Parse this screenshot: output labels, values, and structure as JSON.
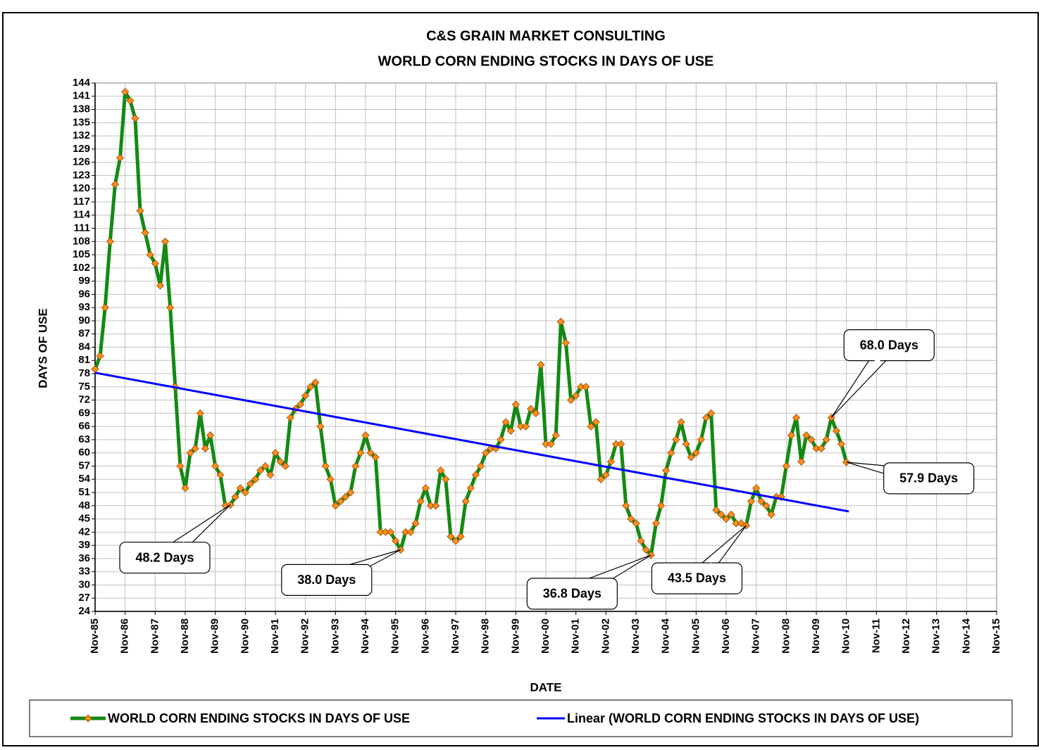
{
  "chart_data": {
    "type": "line",
    "title": "C&S GRAIN MARKET CONSULTING",
    "subtitle": "WORLD CORN ENDING STOCKS IN DAYS OF USE",
    "x_label": "DATE",
    "y_label": "DAYS OF USE",
    "grid": true,
    "legend": "bottom",
    "xlim": [
      "1985-11",
      "2015-11"
    ],
    "ylim": [
      24,
      144
    ],
    "yticks": [
      24,
      27,
      30,
      33,
      36,
      39,
      42,
      45,
      48,
      51,
      54,
      57,
      60,
      63,
      66,
      69,
      72,
      75,
      78,
      81,
      84,
      87,
      90,
      93,
      96,
      99,
      102,
      105,
      108,
      111,
      114,
      117,
      120,
      123,
      126,
      129,
      132,
      135,
      138,
      141,
      144
    ],
    "xticks": [
      {
        "value": "1985-11",
        "label": "Nov-85"
      },
      {
        "value": "1986-11",
        "label": "Nov-86"
      },
      {
        "value": "1987-11",
        "label": "Nov-87"
      },
      {
        "value": "1988-11",
        "label": "Nov-88"
      },
      {
        "value": "1989-11",
        "label": "Nov-89"
      },
      {
        "value": "1990-11",
        "label": "Nov-90"
      },
      {
        "value": "1991-11",
        "label": "Nov-91"
      },
      {
        "value": "1992-11",
        "label": "Nov-92"
      },
      {
        "value": "1993-11",
        "label": "Nov-93"
      },
      {
        "value": "1994-11",
        "label": "Nov-94"
      },
      {
        "value": "1995-11",
        "label": "Nov-95"
      },
      {
        "value": "1996-11",
        "label": "Nov-96"
      },
      {
        "value": "1997-11",
        "label": "Nov-97"
      },
      {
        "value": "1998-11",
        "label": "Nov-98"
      },
      {
        "value": "1999-11",
        "label": "Nov-99"
      },
      {
        "value": "2000-11",
        "label": "Nov-00"
      },
      {
        "value": "2001-11",
        "label": "Nov-01"
      },
      {
        "value": "2002-11",
        "label": "Nov-02"
      },
      {
        "value": "2003-11",
        "label": "Nov-03"
      },
      {
        "value": "2004-11",
        "label": "Nov-04"
      },
      {
        "value": "2005-11",
        "label": "Nov-05"
      },
      {
        "value": "2006-11",
        "label": "Nov-06"
      },
      {
        "value": "2007-11",
        "label": "Nov-07"
      },
      {
        "value": "2008-11",
        "label": "Nov-08"
      },
      {
        "value": "2009-11",
        "label": "Nov-09"
      },
      {
        "value": "2010-11",
        "label": "Nov-10"
      },
      {
        "value": "2011-11",
        "label": "Nov-11"
      },
      {
        "value": "2012-11",
        "label": "Nov-12"
      },
      {
        "value": "2013-11",
        "label": "Nov-13"
      },
      {
        "value": "2014-11",
        "label": "Nov-14"
      },
      {
        "value": "2015-11",
        "label": "Nov-15"
      }
    ],
    "series": [
      {
        "name": "WORLD CORN ENDING STOCKS IN DAYS OF USE",
        "color": "#138a13",
        "marker_color": "#ff8c1a",
        "x": [
          "1985-11",
          "1986-01",
          "1986-03",
          "1986-05",
          "1986-07",
          "1986-09",
          "1986-11",
          "1987-01",
          "1987-03",
          "1987-05",
          "1987-07",
          "1987-09",
          "1987-11",
          "1988-01",
          "1988-03",
          "1988-05",
          "1988-07",
          "1988-09",
          "1988-11",
          "1989-01",
          "1989-03",
          "1989-05",
          "1989-07",
          "1989-09",
          "1989-11",
          "1990-01",
          "1990-03",
          "1990-05",
          "1990-07",
          "1990-09",
          "1990-11",
          "1991-01",
          "1991-03",
          "1991-05",
          "1991-07",
          "1991-09",
          "1991-11",
          "1992-01",
          "1992-03",
          "1992-05",
          "1992-07",
          "1992-09",
          "1992-11",
          "1993-01",
          "1993-03",
          "1993-05",
          "1993-07",
          "1993-09",
          "1993-11",
          "1994-01",
          "1994-03",
          "1994-05",
          "1994-07",
          "1994-09",
          "1994-11",
          "1995-01",
          "1995-03",
          "1995-05",
          "1995-07",
          "1995-09",
          "1995-11",
          "1996-01",
          "1996-03",
          "1996-05",
          "1996-07",
          "1996-09",
          "1996-11",
          "1997-01",
          "1997-03",
          "1997-05",
          "1997-07",
          "1997-09",
          "1997-11",
          "1998-01",
          "1998-03",
          "1998-05",
          "1998-07",
          "1998-09",
          "1998-11",
          "1999-01",
          "1999-03",
          "1999-05",
          "1999-07",
          "1999-09",
          "1999-11",
          "2000-01",
          "2000-03",
          "2000-05",
          "2000-07",
          "2000-09",
          "2000-11",
          "2001-01",
          "2001-03",
          "2001-05",
          "2001-07",
          "2001-09",
          "2001-11",
          "2002-01",
          "2002-03",
          "2002-05",
          "2002-07",
          "2002-09",
          "2002-11",
          "2003-01",
          "2003-03",
          "2003-05",
          "2003-07",
          "2003-09",
          "2003-11",
          "2004-01",
          "2004-03",
          "2004-05",
          "2004-07",
          "2004-09",
          "2004-11",
          "2005-01",
          "2005-03",
          "2005-05",
          "2005-07",
          "2005-09",
          "2005-11",
          "2006-01",
          "2006-03",
          "2006-05",
          "2006-07",
          "2006-09",
          "2006-11",
          "2007-01",
          "2007-03",
          "2007-05",
          "2007-07",
          "2007-09",
          "2007-11",
          "2008-01",
          "2008-03",
          "2008-05",
          "2008-07",
          "2008-09",
          "2008-11",
          "2009-01",
          "2009-03",
          "2009-05",
          "2009-07",
          "2009-09",
          "2009-11",
          "2010-01",
          "2010-03",
          "2010-05",
          "2010-07",
          "2010-09",
          "2010-11"
        ],
        "values": [
          79,
          82,
          93,
          108,
          121,
          127,
          142,
          140,
          136,
          115,
          110,
          105,
          103,
          98,
          108,
          93,
          75,
          57,
          52,
          60,
          61,
          69,
          61,
          64,
          57,
          55,
          48,
          48.2,
          50,
          52,
          51,
          53,
          54,
          56,
          57,
          55,
          60,
          58,
          57,
          68,
          70,
          71,
          73,
          75,
          76,
          66,
          57,
          54,
          48,
          49,
          50,
          51,
          57,
          60,
          64,
          60,
          59,
          42,
          42,
          42,
          40,
          38,
          42,
          42,
          44,
          49,
          52,
          48,
          48,
          56,
          54,
          41,
          40,
          41,
          49,
          52,
          55,
          57,
          60,
          61,
          61,
          63,
          67,
          65,
          71,
          66,
          66,
          70,
          69,
          80,
          62,
          62,
          64,
          89.8,
          85,
          72,
          73,
          75,
          75,
          66,
          67,
          54,
          55,
          58,
          62,
          62,
          48,
          45,
          44,
          40,
          38,
          36.8,
          44,
          48,
          56,
          60,
          63,
          67,
          62,
          59,
          60,
          63,
          68,
          69,
          47,
          46,
          45,
          46,
          44,
          44,
          43.5,
          49,
          52,
          49,
          48,
          46,
          50,
          50,
          57,
          64,
          68,
          58,
          64,
          63,
          61,
          61,
          63,
          68,
          65,
          62,
          57.9
        ]
      },
      {
        "name": "Linear (WORLD CORN ENDING STOCKS IN DAYS OF USE)",
        "color": "#0000ff",
        "x": [
          "1985-11",
          "2010-12"
        ],
        "values": [
          78.2,
          46.7
        ]
      }
    ],
    "annotations": [
      {
        "text": "48.2 Days",
        "x": "1990-05",
        "y": 48.2
      },
      {
        "text": "38.0 Days",
        "x": "1996-01",
        "y": 38
      },
      {
        "text": "36.8 Days",
        "x": "2004-05",
        "y": 36.8
      },
      {
        "text": "43.5 Days",
        "x": "2007-07",
        "y": 43.5
      },
      {
        "text": "68.0 Days",
        "x": "2010-05",
        "y": 68
      },
      {
        "text": "57.9 Days",
        "x": "2010-11",
        "y": 57.9
      }
    ]
  }
}
